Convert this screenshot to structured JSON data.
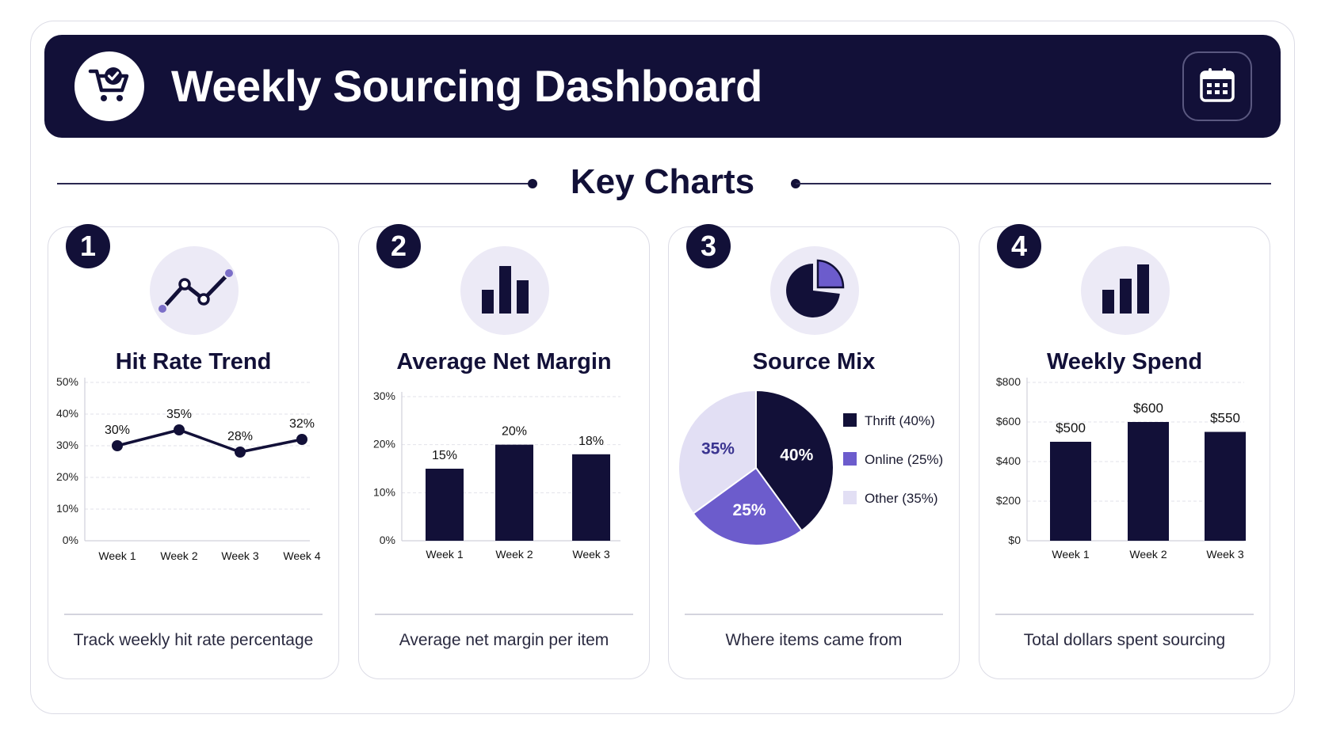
{
  "header": {
    "title": "Weekly Sourcing Dashboard",
    "logo_icon": "shopping-cart-check-icon",
    "calendar_icon": "calendar-icon"
  },
  "section": {
    "title": "Key Charts"
  },
  "colors": {
    "navy": "#121038",
    "purple": "#6c5ccc",
    "lavender": "#e2dff4"
  },
  "cards": [
    {
      "number": "1",
      "title": "Hit Rate Trend",
      "icon": "line-trend-icon",
      "caption": "Track weekly hit rate percentage"
    },
    {
      "number": "2",
      "title": "Average Net Margin",
      "icon": "bar-chart-icon",
      "caption": "Average net margin per item"
    },
    {
      "number": "3",
      "title": "Source Mix",
      "icon": "pie-chart-icon",
      "caption": "Where items came from"
    },
    {
      "number": "4",
      "title": "Weekly Spend",
      "icon": "bar-chart-icon",
      "caption": "Total dollars spent sourcing"
    }
  ],
  "chart_data": [
    {
      "type": "line",
      "title": "Hit Rate Trend",
      "categories": [
        "Week 1",
        "Week 2",
        "Week 3",
        "Week 4"
      ],
      "values": [
        30,
        35,
        28,
        32
      ],
      "data_labels": [
        "30%",
        "35%",
        "28%",
        "32%"
      ],
      "yticks": [
        "0%",
        "10%",
        "20%",
        "30%",
        "40%",
        "50%"
      ],
      "ylim": [
        0,
        50
      ],
      "grid": true
    },
    {
      "type": "bar",
      "title": "Average Net Margin",
      "categories": [
        "Week 1",
        "Week 2",
        "Week 3"
      ],
      "values": [
        15,
        20,
        18
      ],
      "data_labels": [
        "15%",
        "20%",
        "18%"
      ],
      "yticks": [
        "0%",
        "10%",
        "20%",
        "30%"
      ],
      "ylim": [
        0,
        30
      ],
      "grid": true
    },
    {
      "type": "pie",
      "title": "Source Mix",
      "slices": [
        {
          "label": "Thrift (40%)",
          "value": 40,
          "data_label": "40%",
          "color": "#121038"
        },
        {
          "label": "Online (25%)",
          "value": 25,
          "data_label": "25%",
          "color": "#6c5ccc"
        },
        {
          "label": "Other (35%)",
          "value": 35,
          "data_label": "35%",
          "color": "#e2dff4"
        }
      ],
      "legend": "right"
    },
    {
      "type": "bar",
      "title": "Weekly Spend",
      "categories": [
        "Week 1",
        "Week 2",
        "Week 3"
      ],
      "values": [
        500,
        600,
        550
      ],
      "data_labels": [
        "$500",
        "$600",
        "$550"
      ],
      "yticks": [
        "$0",
        "$200",
        "$400",
        "$600",
        "$800"
      ],
      "ylim": [
        0,
        800
      ],
      "grid": true
    }
  ]
}
